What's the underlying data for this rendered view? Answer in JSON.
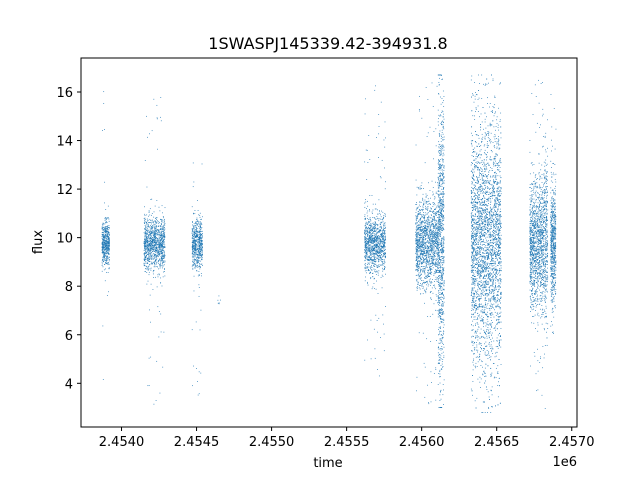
{
  "chart_data": {
    "type": "scatter",
    "title": "1SWASPJ145339.42-394931.8",
    "xlabel": "time",
    "ylabel": "flux",
    "x_offset_label": "1e6",
    "xlim": [
      2453730,
      2457035
    ],
    "ylim": [
      2.2,
      17.4
    ],
    "x_ticks": [
      2453800,
      2454000,
      2454200,
      2454400,
      2454600,
      2454800,
      2455000,
      2455200,
      2455400,
      2455600,
      2455800,
      2456000,
      2456200,
      2456400,
      2456600,
      2456800,
      2457000
    ],
    "x_tick_labels": [
      "2.4540",
      "2.4545",
      "2.4550",
      "2.4555",
      "2.4560",
      "2.4565",
      "2.4570"
    ],
    "x_tick_values": [
      2454000,
      2454500,
      2455000,
      2455500,
      2456000,
      2456500,
      2457000
    ],
    "y_tick_values": [
      4,
      6,
      8,
      10,
      12,
      14,
      16
    ],
    "y_tick_labels": [
      "4",
      "6",
      "8",
      "10",
      "12",
      "14",
      "16"
    ],
    "grid": false,
    "marker_color": "#1f77b4",
    "series": [
      {
        "segments": [
          {
            "x_start": 2453870,
            "x_end": 2453920,
            "center": 9.75,
            "core_spread": 0.45,
            "outlier_low": 3.7,
            "outlier_high": 16.4,
            "n": 500
          },
          {
            "x_start": 2454150,
            "x_end": 2454290,
            "center": 9.7,
            "core_spread": 0.55,
            "outlier_low": 3.1,
            "outlier_high": 16.1,
            "n": 1100
          },
          {
            "x_start": 2454470,
            "x_end": 2454540,
            "center": 9.75,
            "core_spread": 0.5,
            "outlier_low": 3.4,
            "outlier_high": 13.3,
            "n": 600
          },
          {
            "x_start": 2454640,
            "x_end": 2454660,
            "center": 7.4,
            "core_spread": 0.15,
            "outlier_low": 7.2,
            "outlier_high": 7.6,
            "n": 6
          },
          {
            "x_start": 2455620,
            "x_end": 2455760,
            "center": 9.75,
            "core_spread": 0.6,
            "outlier_low": 4.1,
            "outlier_high": 16.4,
            "n": 1100
          },
          {
            "x_start": 2455960,
            "x_end": 2456110,
            "center": 9.8,
            "core_spread": 0.9,
            "outlier_low": 3.0,
            "outlier_high": 16.6,
            "n": 1400
          },
          {
            "x_start": 2456110,
            "x_end": 2456150,
            "center": 10.0,
            "core_spread": 2.8,
            "outlier_low": 3.0,
            "outlier_high": 16.7,
            "n": 900
          },
          {
            "x_start": 2456330,
            "x_end": 2456530,
            "center": 9.8,
            "core_spread": 2.4,
            "outlier_low": 2.8,
            "outlier_high": 16.7,
            "n": 3200
          },
          {
            "x_start": 2456720,
            "x_end": 2456800,
            "center": 9.8,
            "core_spread": 1.3,
            "outlier_low": 3.5,
            "outlier_high": 16.7,
            "n": 1000
          },
          {
            "x_start": 2456800,
            "x_end": 2456840,
            "center": 9.8,
            "core_spread": 1.6,
            "outlier_low": 2.8,
            "outlier_high": 16.7,
            "n": 500
          },
          {
            "x_start": 2456860,
            "x_end": 2456895,
            "center": 9.8,
            "core_spread": 1.2,
            "outlier_low": 5.6,
            "outlier_high": 16.5,
            "n": 600
          }
        ]
      }
    ]
  }
}
